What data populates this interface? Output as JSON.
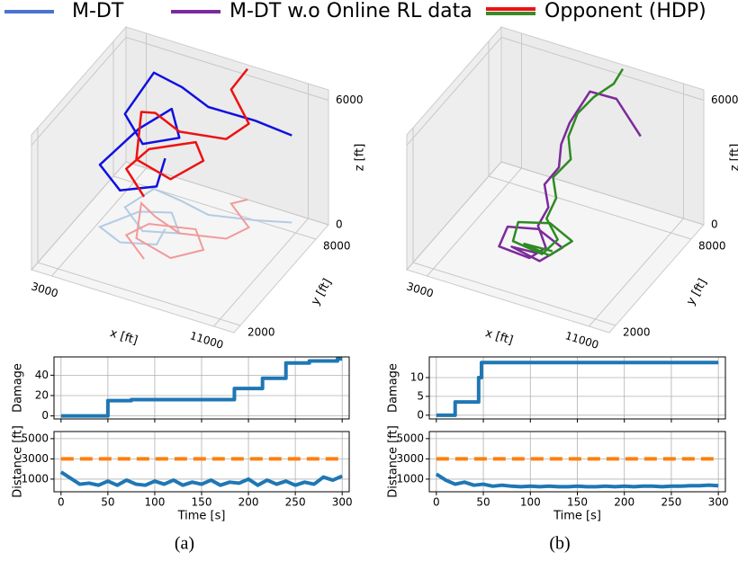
{
  "legend": [
    {
      "name": "M-DT",
      "color": "#4a72d0"
    },
    {
      "name": "M-DT w.o Online RL data",
      "color": "#7b2a9c"
    },
    {
      "name": "Opponent (HDP)",
      "colors": [
        "#ee1111",
        "#3a8a2a"
      ]
    }
  ],
  "captions": [
    "(a)",
    "(b)"
  ],
  "chart_data": [
    {
      "type": "line3d",
      "xlabel": "x [ft]",
      "ylabel": "y [ft]",
      "zlabel": "z [ft]",
      "xlim": [
        2000,
        12000
      ],
      "ylim": [
        1500,
        9000
      ],
      "zlim": [
        0,
        6500
      ],
      "xticks": [
        3000,
        11000
      ],
      "yticks": [
        2000,
        8000
      ],
      "zticks": [
        0,
        6000
      ],
      "series": [
        {
          "color": "#1010e0",
          "shadow": "#b4cbe3",
          "x": [
            10500,
            9000,
            7000,
            5500,
            4000,
            3500,
            5000,
            6500,
            5500,
            4200,
            3200,
            4500,
            6000,
            5800
          ],
          "y": [
            8500,
            8000,
            7500,
            7800,
            8000,
            6500,
            5500,
            6000,
            7000,
            6500,
            5000,
            4500,
            5000,
            6000
          ],
          "z": [
            4200,
            4800,
            5200,
            5500,
            5600,
            4500,
            4200,
            4600,
            5000,
            4000,
            3000,
            2500,
            2800,
            3400
          ]
        },
        {
          "color": "#ee1111",
          "shadow": "#f29a9a",
          "x": [
            8000,
            7500,
            9000,
            8500,
            6500,
            5000,
            4000,
            5000,
            7000,
            8000,
            7000,
            5000,
            4500,
            6000
          ],
          "y": [
            9000,
            8500,
            7500,
            6500,
            6000,
            6500,
            7000,
            5000,
            4500,
            5500,
            6500,
            6000,
            5000,
            4000
          ],
          "z": [
            6300,
            5500,
            5000,
            4800,
            4900,
            5000,
            4400,
            3800,
            3800,
            4300,
            4200,
            3600,
            3200,
            3000
          ]
        }
      ]
    },
    {
      "type": "line3d",
      "xlabel": "x [ft]",
      "ylabel": "y [ft]",
      "zlabel": "z [ft]",
      "xlim": [
        2000,
        12000
      ],
      "ylim": [
        1500,
        9000
      ],
      "zlim": [
        0,
        6500
      ],
      "xticks": [
        3000,
        11000
      ],
      "yticks": [
        2000,
        8000
      ],
      "zticks": [
        0,
        6000
      ],
      "series": [
        {
          "color": "#7b2a9c",
          "x": [
            9500,
            8000,
            7000,
            6500,
            6200,
            6400,
            6000,
            6500,
            6300,
            7000,
            6500,
            5000,
            4800,
            6000,
            7500,
            7000,
            5500,
            6500
          ],
          "y": [
            8000,
            8500,
            8000,
            7200,
            7000,
            6500,
            6000,
            5500,
            5000,
            4500,
            4000,
            4000,
            5000,
            5500,
            5000,
            4000,
            4200,
            4500
          ],
          "z": [
            4200,
            5200,
            5600,
            4500,
            3500,
            2800,
            2200,
            1600,
            1000,
            500,
            200,
            300,
            500,
            400,
            300,
            200,
            300,
            100
          ]
        },
        {
          "color": "#2e8b22",
          "x": [
            8000,
            7800,
            7200,
            6700,
            6500,
            6800,
            6300,
            6700,
            6600,
            7400,
            7000,
            5500,
            5200,
            6400,
            7800,
            7300,
            6000,
            7200
          ],
          "y": [
            9000,
            8600,
            8000,
            7500,
            7100,
            6800,
            6200,
            5800,
            5200,
            4800,
            4200,
            4300,
            5200,
            5800,
            5300,
            4300,
            4400,
            4700
          ],
          "z": [
            6300,
            5800,
            5400,
            4800,
            3900,
            3100,
            2500,
            1900,
            1300,
            800,
            400,
            500,
            700,
            600,
            500,
            350,
            450,
            250
          ]
        }
      ]
    },
    {
      "type": "line",
      "ylabel": "Damage",
      "xlim": [
        -7.5,
        307.5
      ],
      "ylim": [
        -3,
        58
      ],
      "xticks": [
        0,
        50,
        100,
        150,
        200,
        250,
        300
      ],
      "yticks": [
        0,
        20,
        40
      ],
      "xtick_labels": false,
      "grid": true,
      "series": [
        {
          "color": "#1f77b4",
          "step": "post",
          "width": 4,
          "x": [
            0,
            50,
            75,
            185,
            215,
            240,
            265,
            295,
            300
          ],
          "values": [
            0,
            15,
            16,
            27,
            37,
            52,
            54,
            56,
            56
          ]
        }
      ]
    },
    {
      "type": "line",
      "ylabel": "Distance [ft]",
      "xlabel": "Time [s]",
      "xlim": [
        -7.5,
        307.5
      ],
      "ylim": [
        -250,
        5700
      ],
      "xticks": [
        0,
        50,
        100,
        150,
        200,
        250,
        300
      ],
      "yticks": [
        1000,
        3000,
        5000
      ],
      "xtick_labels": true,
      "grid": true,
      "series": [
        {
          "color": "#1f77b4",
          "width": 4,
          "x": [
            0,
            10,
            20,
            30,
            40,
            50,
            60,
            70,
            80,
            90,
            100,
            110,
            120,
            130,
            140,
            150,
            160,
            170,
            180,
            190,
            200,
            210,
            220,
            230,
            240,
            250,
            260,
            270,
            280,
            290,
            300
          ],
          "values": [
            1700,
            1100,
            500,
            600,
            400,
            800,
            400,
            900,
            500,
            400,
            800,
            500,
            900,
            400,
            700,
            500,
            900,
            400,
            700,
            600,
            1000,
            400,
            900,
            500,
            800,
            400,
            700,
            500,
            1200,
            900,
            1300
          ]
        },
        {
          "color": "#ff7f0e",
          "width": 4,
          "dash": true,
          "x": [
            0,
            300
          ],
          "values": [
            3000,
            3000
          ]
        }
      ]
    },
    {
      "type": "line",
      "ylabel": "Damage",
      "xlim": [
        -7.5,
        307.5
      ],
      "ylim": [
        -1,
        15.5
      ],
      "xticks": [
        0,
        50,
        100,
        150,
        200,
        250,
        300
      ],
      "yticks": [
        0,
        5,
        10
      ],
      "xtick_labels": false,
      "grid": true,
      "series": [
        {
          "color": "#1f77b4",
          "step": "post",
          "width": 4,
          "x": [
            0,
            20,
            45,
            48,
            300
          ],
          "values": [
            0,
            3.5,
            10,
            14,
            14
          ]
        }
      ]
    },
    {
      "type": "line",
      "ylabel": "Distance [ft]",
      "xlabel": "Time [s]",
      "xlim": [
        -7.5,
        307.5
      ],
      "ylim": [
        -250,
        5700
      ],
      "xticks": [
        0,
        50,
        100,
        150,
        200,
        250,
        300
      ],
      "yticks": [
        1000,
        3000,
        5000
      ],
      "xtick_labels": true,
      "grid": true,
      "series": [
        {
          "color": "#1f77b4",
          "width": 4,
          "x": [
            0,
            10,
            20,
            30,
            40,
            50,
            60,
            70,
            80,
            90,
            100,
            110,
            120,
            130,
            140,
            150,
            160,
            170,
            180,
            190,
            200,
            210,
            220,
            230,
            240,
            250,
            260,
            270,
            280,
            290,
            300
          ],
          "values": [
            1500,
            900,
            500,
            700,
            400,
            500,
            300,
            400,
            300,
            250,
            300,
            250,
            300,
            250,
            250,
            300,
            250,
            250,
            300,
            250,
            300,
            250,
            300,
            300,
            250,
            300,
            300,
            350,
            350,
            400,
            350
          ]
        },
        {
          "color": "#ff7f0e",
          "width": 4,
          "dash": true,
          "x": [
            0,
            300
          ],
          "values": [
            3000,
            3000
          ]
        }
      ]
    }
  ]
}
